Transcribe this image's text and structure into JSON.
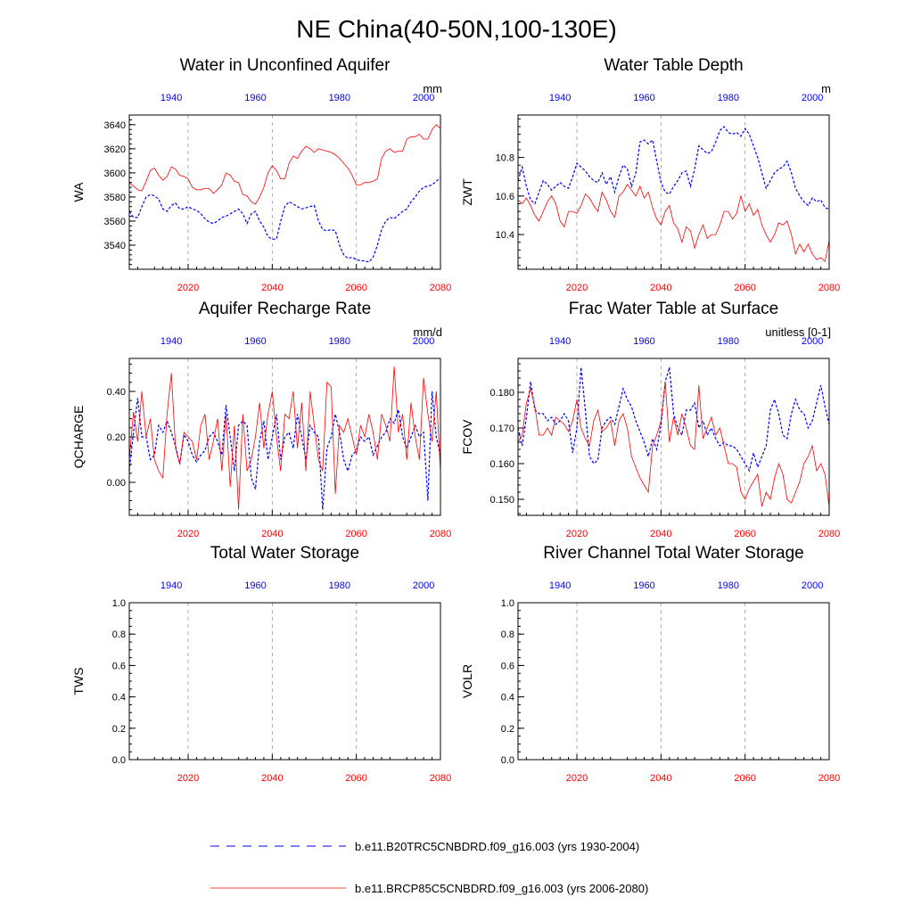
{
  "figure": {
    "title": "NE China(40-50N,100-130E)"
  },
  "legend": [
    {
      "label": "b.e11.B20TRC5CNBDRD.f09_g16.003 (yrs 1930-2004)",
      "color": "#0000ff",
      "style": "dashed"
    },
    {
      "label": "b.e11.BRCP85C5CNBDRD.f09_g16.003 (yrs 2006-2080)",
      "color": "#ff0000",
      "style": "solid"
    }
  ],
  "chart_data": [
    {
      "type": "line",
      "title": "Water in Unconfined Aquifer",
      "ylabel": "WA",
      "units": "mm",
      "ylim": [
        3520,
        3648
      ],
      "yticks": [
        3540,
        3560,
        3580,
        3600,
        3620,
        3640
      ],
      "yticklabels": [
        "3540",
        "3560",
        "3580",
        "3600",
        "3620",
        "3640"
      ],
      "ylim_minor_step": 4,
      "x_bottom": {
        "range": [
          2006,
          2080
        ],
        "ticks": [
          2020,
          2040,
          2060,
          2080
        ],
        "labels": [
          "2020",
          "2040",
          "2060",
          "2080"
        ]
      },
      "x_top": {
        "range": [
          1930,
          2004
        ],
        "ticks": [
          1940,
          1960,
          1980,
          2000
        ],
        "labels": [
          "1940",
          "1960",
          "1980",
          "2000"
        ]
      },
      "series": [
        {
          "name": "b.e11.B20TRC5CNBDRD.f09_g16.003",
          "axis": "top",
          "x_start": 1930,
          "values": [
            3568,
            3563,
            3563,
            3572,
            3580,
            3582,
            3581,
            3578,
            3570,
            3568,
            3573,
            3575,
            3570,
            3570,
            3572,
            3570,
            3569,
            3566,
            3562,
            3559,
            3558,
            3560,
            3563,
            3564,
            3566,
            3568,
            3570,
            3566,
            3558,
            3566,
            3568,
            3560,
            3555,
            3547,
            3545,
            3545,
            3560,
            3572,
            3576,
            3574,
            3572,
            3570,
            3571,
            3572,
            3573,
            3560,
            3553,
            3552,
            3553,
            3552,
            3540,
            3532,
            3529,
            3530,
            3528,
            3527,
            3527,
            3526,
            3530,
            3540,
            3553,
            3560,
            3563,
            3562,
            3565,
            3568,
            3570,
            3576,
            3580,
            3585,
            3588,
            3589,
            3590,
            3593,
            3596
          ]
        },
        {
          "name": "b.e11.BRCP85C5CNBDRD.f09_g16.003",
          "axis": "bottom",
          "x_start": 2006,
          "values": [
            3592,
            3589,
            3586,
            3585,
            3593,
            3602,
            3604,
            3598,
            3594,
            3597,
            3605,
            3603,
            3598,
            3597,
            3595,
            3588,
            3586,
            3586,
            3587,
            3587,
            3583,
            3586,
            3590,
            3600,
            3598,
            3593,
            3592,
            3582,
            3581,
            3576,
            3574,
            3580,
            3588,
            3600,
            3606,
            3602,
            3595,
            3595,
            3608,
            3614,
            3612,
            3618,
            3622,
            3620,
            3617,
            3620,
            3619,
            3618,
            3617,
            3615,
            3612,
            3608,
            3604,
            3598,
            3590,
            3590,
            3592,
            3592,
            3593,
            3595,
            3612,
            3618,
            3620,
            3617,
            3618,
            3618,
            3628,
            3630,
            3630,
            3632,
            3628,
            3628,
            3636,
            3640,
            3637
          ]
        }
      ]
    },
    {
      "type": "line",
      "title": "Water Table Depth",
      "ylabel": "ZWT",
      "units": "m",
      "ylim": [
        10.22,
        11.02
      ],
      "yticks": [
        10.4,
        10.6,
        10.8
      ],
      "yticklabels": [
        "10.4",
        "10.6",
        "10.8"
      ],
      "ylim_minor_step": 0.04,
      "x_bottom": {
        "range": [
          2006,
          2080
        ],
        "ticks": [
          2020,
          2040,
          2060,
          2080
        ],
        "labels": [
          "2020",
          "2040",
          "2060",
          "2080"
        ]
      },
      "x_top": {
        "range": [
          1930,
          2004
        ],
        "ticks": [
          1940,
          1960,
          1980,
          2000
        ],
        "labels": [
          "1940",
          "1960",
          "1980",
          "2000"
        ]
      },
      "series": [
        {
          "name": "b.e11.B20TRC5CNBDRD.f09_g16.003",
          "axis": "top",
          "x_start": 1930,
          "values": [
            10.68,
            10.75,
            10.65,
            10.58,
            10.56,
            10.62,
            10.68,
            10.66,
            10.63,
            10.65,
            10.67,
            10.65,
            10.64,
            10.7,
            10.77,
            10.75,
            10.73,
            10.7,
            10.68,
            10.67,
            10.72,
            10.66,
            10.7,
            10.62,
            10.7,
            10.76,
            10.74,
            10.65,
            10.72,
            10.88,
            10.89,
            10.87,
            10.89,
            10.78,
            10.67,
            10.62,
            10.61,
            10.65,
            10.68,
            10.72,
            10.73,
            10.65,
            10.74,
            10.86,
            10.84,
            10.82,
            10.83,
            10.88,
            10.94,
            10.96,
            10.93,
            10.92,
            10.93,
            10.91,
            10.95,
            10.92,
            10.86,
            10.8,
            10.72,
            10.64,
            10.68,
            10.72,
            10.74,
            10.75,
            10.78,
            10.72,
            10.64,
            10.6,
            10.57,
            10.55,
            10.59,
            10.57,
            10.58,
            10.54,
            10.53
          ]
        },
        {
          "name": "b.e11.BRCP85C5CNBDRD.f09_g16.003",
          "axis": "bottom",
          "x_start": 2006,
          "values": [
            10.58,
            10.56,
            10.59,
            10.55,
            10.5,
            10.47,
            10.52,
            10.57,
            10.6,
            10.56,
            10.47,
            10.44,
            10.52,
            10.52,
            10.51,
            10.55,
            10.61,
            10.59,
            10.55,
            10.52,
            10.62,
            10.58,
            10.52,
            10.49,
            10.6,
            10.62,
            10.66,
            10.63,
            10.6,
            10.65,
            10.59,
            10.62,
            10.54,
            10.48,
            10.45,
            10.52,
            10.55,
            10.46,
            10.43,
            10.36,
            10.44,
            10.42,
            10.33,
            10.4,
            10.45,
            10.38,
            10.4,
            10.4,
            10.45,
            10.52,
            10.52,
            10.48,
            10.51,
            10.6,
            10.52,
            10.56,
            10.5,
            10.53,
            10.45,
            10.4,
            10.36,
            10.4,
            10.46,
            10.45,
            10.47,
            10.4,
            10.3,
            10.35,
            10.31,
            10.35,
            10.3,
            10.27,
            10.28,
            10.26,
            10.37
          ]
        }
      ]
    },
    {
      "type": "line",
      "title": "Aquifer Recharge Rate",
      "ylabel": "QCHARGE",
      "units": "mm/d",
      "ylim": [
        -0.145,
        0.545
      ],
      "yticks": [
        0.0,
        0.2,
        0.4
      ],
      "yticklabels": [
        "0.00",
        "0.20",
        "0.40"
      ],
      "ylim_minor_step": 0.04,
      "x_bottom": {
        "range": [
          2006,
          2080
        ],
        "ticks": [
          2020,
          2040,
          2060,
          2080
        ],
        "labels": [
          "2020",
          "2040",
          "2060",
          "2080"
        ]
      },
      "x_top": {
        "range": [
          1930,
          2004
        ],
        "ticks": [
          1940,
          1960,
          1980,
          2000
        ],
        "labels": [
          "1940",
          "1960",
          "1980",
          "2000"
        ]
      },
      "series": [
        {
          "name": "b.e11.B20TRC5CNBDRD.f09_g16.003",
          "axis": "top",
          "x_start": 1930,
          "values": [
            0.05,
            0.22,
            0.37,
            0.2,
            0.2,
            0.1,
            0.12,
            0.25,
            0.22,
            0.27,
            0.22,
            0.16,
            0.08,
            0.21,
            0.18,
            0.12,
            0.09,
            0.12,
            0.14,
            0.2,
            0.22,
            0.18,
            0.12,
            0.34,
            0.2,
            0.05,
            0.25,
            0.27,
            0.25,
            0.02,
            -0.03,
            0.18,
            0.27,
            0.1,
            0.2,
            0.3,
            0.1,
            0.2,
            0.22,
            0.15,
            0.3,
            0.2,
            0.1,
            0.25,
            0.22,
            0.2,
            -0.12,
            0.15,
            0.2,
            0.3,
            0.22,
            0.1,
            0.05,
            0.12,
            0.14,
            0.2,
            0.18,
            0.2,
            0.12,
            0.16,
            0.2,
            0.22,
            0.28,
            0.26,
            0.32,
            0.2,
            0.15,
            0.2,
            0.25,
            0.2,
            0.22,
            -0.08,
            0.4,
            0.2,
            0.12
          ]
        },
        {
          "name": "b.e11.BRCP85C5CNBDRD.f09_g16.003",
          "axis": "bottom",
          "x_start": 2006,
          "values": [
            0.1,
            0.31,
            0.18,
            0.4,
            0.2,
            0.28,
            0.1,
            0.05,
            0.02,
            0.3,
            0.48,
            0.15,
            0.08,
            0.22,
            0.2,
            0.18,
            0.1,
            0.25,
            0.3,
            0.1,
            0.18,
            0.28,
            0.05,
            0.3,
            -0.02,
            0.25,
            -0.12,
            0.3,
            0.05,
            0.1,
            0.2,
            0.35,
            0.15,
            0.3,
            0.4,
            0.2,
            0.05,
            0.3,
            0.28,
            0.4,
            0.15,
            0.35,
            0.05,
            0.4,
            0.25,
            0.1,
            0.05,
            0.44,
            0.42,
            -0.05,
            0.25,
            0.22,
            0.28,
            0.2,
            0.12,
            0.25,
            0.2,
            0.3,
            0.22,
            0.1,
            0.3,
            0.25,
            0.18,
            0.51,
            0.22,
            0.3,
            0.1,
            0.35,
            0.2,
            0.1,
            0.46,
            0.3,
            0.18,
            0.4,
            0.05
          ]
        }
      ]
    },
    {
      "type": "line",
      "title": "Frac Water Table at Surface",
      "ylabel": "FCOV",
      "units": "unitless [0-1]",
      "ylim": [
        0.1455,
        0.1895
      ],
      "yticks": [
        0.15,
        0.16,
        0.17,
        0.18
      ],
      "yticklabels": [
        "0.150",
        "0.160",
        "0.170",
        "0.180"
      ],
      "ylim_minor_step": 0.002,
      "x_bottom": {
        "range": [
          2006,
          2080
        ],
        "ticks": [
          2020,
          2040,
          2060,
          2080
        ],
        "labels": [
          "2020",
          "2040",
          "2060",
          "2080"
        ]
      },
      "x_top": {
        "range": [
          1930,
          2004
        ],
        "ticks": [
          1940,
          1960,
          1980,
          2000
        ],
        "labels": [
          "1940",
          "1960",
          "1980",
          "2000"
        ]
      },
      "series": [
        {
          "name": "b.e11.B20TRC5CNBDRD.f09_g16.003",
          "axis": "top",
          "x_start": 1930,
          "values": [
            0.17,
            0.165,
            0.173,
            0.183,
            0.175,
            0.174,
            0.174,
            0.172,
            0.173,
            0.171,
            0.172,
            0.174,
            0.172,
            0.163,
            0.17,
            0.187,
            0.175,
            0.162,
            0.16,
            0.161,
            0.17,
            0.172,
            0.173,
            0.171,
            0.176,
            0.181,
            0.178,
            0.176,
            0.172,
            0.169,
            0.166,
            0.162,
            0.167,
            0.164,
            0.171,
            0.183,
            0.187,
            0.174,
            0.17,
            0.168,
            0.175,
            0.175,
            0.177,
            0.17,
            0.172,
            0.168,
            0.17,
            0.167,
            0.165,
            0.166,
            0.165,
            0.165,
            0.164,
            0.162,
            0.16,
            0.158,
            0.163,
            0.159,
            0.162,
            0.165,
            0.175,
            0.178,
            0.174,
            0.168,
            0.167,
            0.174,
            0.178,
            0.175,
            0.174,
            0.17,
            0.172,
            0.177,
            0.182,
            0.176,
            0.171
          ]
        },
        {
          "name": "b.e11.BRCP85C5CNBDRD.f09_g16.003",
          "axis": "bottom",
          "x_start": 2006,
          "values": [
            0.166,
            0.168,
            0.177,
            0.181,
            0.176,
            0.168,
            0.168,
            0.17,
            0.168,
            0.173,
            0.172,
            0.171,
            0.169,
            0.172,
            0.178,
            0.17,
            0.167,
            0.165,
            0.172,
            0.175,
            0.169,
            0.17,
            0.172,
            0.165,
            0.172,
            0.174,
            0.17,
            0.162,
            0.159,
            0.156,
            0.154,
            0.152,
            0.165,
            0.168,
            0.172,
            0.183,
            0.166,
            0.173,
            0.168,
            0.174,
            0.17,
            0.165,
            0.164,
            0.182,
            0.167,
            0.17,
            0.173,
            0.168,
            0.17,
            0.165,
            0.16,
            0.16,
            0.159,
            0.152,
            0.15,
            0.153,
            0.155,
            0.157,
            0.148,
            0.152,
            0.15,
            0.156,
            0.16,
            0.157,
            0.15,
            0.149,
            0.152,
            0.155,
            0.16,
            0.162,
            0.165,
            0.158,
            0.16,
            0.157,
            0.148
          ]
        }
      ]
    },
    {
      "type": "line",
      "title": "Total Water Storage",
      "ylabel": "TWS",
      "units": "",
      "ylim": [
        0.0,
        1.0
      ],
      "yticks": [
        0.0,
        0.2,
        0.4,
        0.6,
        0.8,
        1.0
      ],
      "yticklabels": [
        "0.0",
        "0.2",
        "0.4",
        "0.6",
        "0.8",
        "1.0"
      ],
      "ylim_minor_step": 0.05,
      "x_bottom": {
        "range": [
          2006,
          2080
        ],
        "ticks": [
          2020,
          2040,
          2060,
          2080
        ],
        "labels": [
          "2020",
          "2040",
          "2060",
          "2080"
        ]
      },
      "x_top": {
        "range": [
          1930,
          2004
        ],
        "ticks": [
          1940,
          1960,
          1980,
          2000
        ],
        "labels": [
          "1940",
          "1960",
          "1980",
          "2000"
        ]
      },
      "series": []
    },
    {
      "type": "line",
      "title": "River Channel Total Water Storage",
      "ylabel": "VOLR",
      "units": "",
      "ylim": [
        0.0,
        1.0
      ],
      "yticks": [
        0.0,
        0.2,
        0.4,
        0.6,
        0.8,
        1.0
      ],
      "yticklabels": [
        "0.0",
        "0.2",
        "0.4",
        "0.6",
        "0.8",
        "1.0"
      ],
      "ylim_minor_step": 0.05,
      "x_bottom": {
        "range": [
          2006,
          2080
        ],
        "ticks": [
          2020,
          2040,
          2060,
          2080
        ],
        "labels": [
          "2020",
          "2040",
          "2060",
          "2080"
        ]
      },
      "x_top": {
        "range": [
          1930,
          2004
        ],
        "ticks": [
          1940,
          1960,
          1980,
          2000
        ],
        "labels": [
          "1940",
          "1960",
          "1980",
          "2000"
        ]
      },
      "series": []
    }
  ]
}
